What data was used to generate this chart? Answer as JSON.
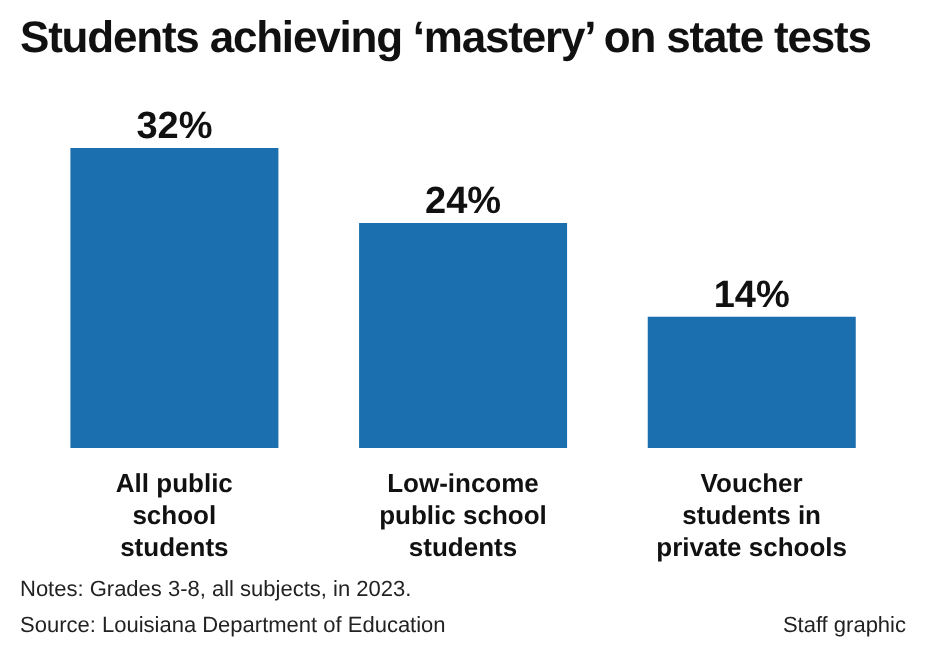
{
  "chart_data": {
    "type": "bar",
    "title": "Students achieving ‘mastery’ on state tests",
    "categories": [
      "All public school students",
      "Low-income public school students",
      "Voucher students in private schools"
    ],
    "values": [
      32,
      24,
      14
    ],
    "value_labels": [
      "32%",
      "24%",
      "14%"
    ],
    "color": "#1b6fae",
    "annotations": [
      "Notes: Grades 3-8, all subjects, in 2023.",
      "Source: Louisiana Department of Education",
      "Staff graphic"
    ]
  }
}
